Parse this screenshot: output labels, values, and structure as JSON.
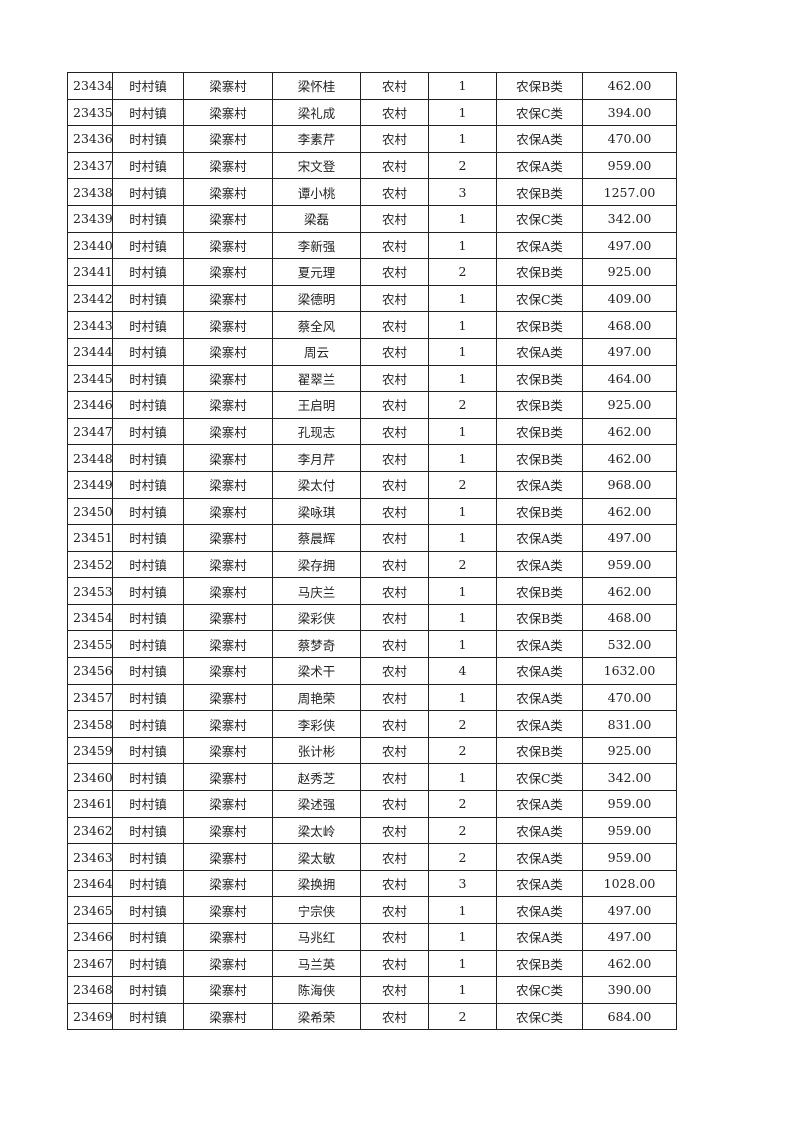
{
  "table": {
    "rows": [
      [
        "23434",
        "时村镇",
        "梁寨村",
        "梁怀桂",
        "农村",
        "1",
        "农保B类",
        "462.00"
      ],
      [
        "23435",
        "时村镇",
        "梁寨村",
        "梁礼成",
        "农村",
        "1",
        "农保C类",
        "394.00"
      ],
      [
        "23436",
        "时村镇",
        "梁寨村",
        "李素芹",
        "农村",
        "1",
        "农保A类",
        "470.00"
      ],
      [
        "23437",
        "时村镇",
        "梁寨村",
        "宋文登",
        "农村",
        "2",
        "农保A类",
        "959.00"
      ],
      [
        "23438",
        "时村镇",
        "梁寨村",
        "谭小桃",
        "农村",
        "3",
        "农保B类",
        "1257.00"
      ],
      [
        "23439",
        "时村镇",
        "梁寨村",
        "梁磊",
        "农村",
        "1",
        "农保C类",
        "342.00"
      ],
      [
        "23440",
        "时村镇",
        "梁寨村",
        "李新强",
        "农村",
        "1",
        "农保A类",
        "497.00"
      ],
      [
        "23441",
        "时村镇",
        "梁寨村",
        "夏元理",
        "农村",
        "2",
        "农保B类",
        "925.00"
      ],
      [
        "23442",
        "时村镇",
        "梁寨村",
        "梁德明",
        "农村",
        "1",
        "农保C类",
        "409.00"
      ],
      [
        "23443",
        "时村镇",
        "梁寨村",
        "蔡全风",
        "农村",
        "1",
        "农保B类",
        "468.00"
      ],
      [
        "23444",
        "时村镇",
        "梁寨村",
        "周云",
        "农村",
        "1",
        "农保A类",
        "497.00"
      ],
      [
        "23445",
        "时村镇",
        "梁寨村",
        "翟翠兰",
        "农村",
        "1",
        "农保B类",
        "464.00"
      ],
      [
        "23446",
        "时村镇",
        "梁寨村",
        "王启明",
        "农村",
        "2",
        "农保B类",
        "925.00"
      ],
      [
        "23447",
        "时村镇",
        "梁寨村",
        "孔现志",
        "农村",
        "1",
        "农保B类",
        "462.00"
      ],
      [
        "23448",
        "时村镇",
        "梁寨村",
        "李月芹",
        "农村",
        "1",
        "农保B类",
        "462.00"
      ],
      [
        "23449",
        "时村镇",
        "梁寨村",
        "梁太付",
        "农村",
        "2",
        "农保A类",
        "968.00"
      ],
      [
        "23450",
        "时村镇",
        "梁寨村",
        "梁咏琪",
        "农村",
        "1",
        "农保B类",
        "462.00"
      ],
      [
        "23451",
        "时村镇",
        "梁寨村",
        "蔡晨辉",
        "农村",
        "1",
        "农保A类",
        "497.00"
      ],
      [
        "23452",
        "时村镇",
        "梁寨村",
        "梁存拥",
        "农村",
        "2",
        "农保A类",
        "959.00"
      ],
      [
        "23453",
        "时村镇",
        "梁寨村",
        "马庆兰",
        "农村",
        "1",
        "农保B类",
        "462.00"
      ],
      [
        "23454",
        "时村镇",
        "梁寨村",
        "梁彩侠",
        "农村",
        "1",
        "农保B类",
        "468.00"
      ],
      [
        "23455",
        "时村镇",
        "梁寨村",
        "蔡梦奇",
        "农村",
        "1",
        "农保A类",
        "532.00"
      ],
      [
        "23456",
        "时村镇",
        "梁寨村",
        "梁术干",
        "农村",
        "4",
        "农保A类",
        "1632.00"
      ],
      [
        "23457",
        "时村镇",
        "梁寨村",
        "周艳荣",
        "农村",
        "1",
        "农保A类",
        "470.00"
      ],
      [
        "23458",
        "时村镇",
        "梁寨村",
        "李彩侠",
        "农村",
        "2",
        "农保A类",
        "831.00"
      ],
      [
        "23459",
        "时村镇",
        "梁寨村",
        "张计彬",
        "农村",
        "2",
        "农保B类",
        "925.00"
      ],
      [
        "23460",
        "时村镇",
        "梁寨村",
        "赵秀芝",
        "农村",
        "1",
        "农保C类",
        "342.00"
      ],
      [
        "23461",
        "时村镇",
        "梁寨村",
        "梁述强",
        "农村",
        "2",
        "农保A类",
        "959.00"
      ],
      [
        "23462",
        "时村镇",
        "梁寨村",
        "梁太岭",
        "农村",
        "2",
        "农保A类",
        "959.00"
      ],
      [
        "23463",
        "时村镇",
        "梁寨村",
        "梁太敏",
        "农村",
        "2",
        "农保A类",
        "959.00"
      ],
      [
        "23464",
        "时村镇",
        "梁寨村",
        "梁换拥",
        "农村",
        "3",
        "农保A类",
        "1028.00"
      ],
      [
        "23465",
        "时村镇",
        "梁寨村",
        "宁宗侠",
        "农村",
        "1",
        "农保A类",
        "497.00"
      ],
      [
        "23466",
        "时村镇",
        "梁寨村",
        "马兆红",
        "农村",
        "1",
        "农保A类",
        "497.00"
      ],
      [
        "23467",
        "时村镇",
        "梁寨村",
        "马兰英",
        "农村",
        "1",
        "农保B类",
        "462.00"
      ],
      [
        "23468",
        "时村镇",
        "梁寨村",
        "陈海侠",
        "农村",
        "1",
        "农保C类",
        "390.00"
      ],
      [
        "23469",
        "时村镇",
        "梁寨村",
        "梁希荣",
        "农村",
        "2",
        "农保C类",
        "684.00"
      ]
    ]
  }
}
